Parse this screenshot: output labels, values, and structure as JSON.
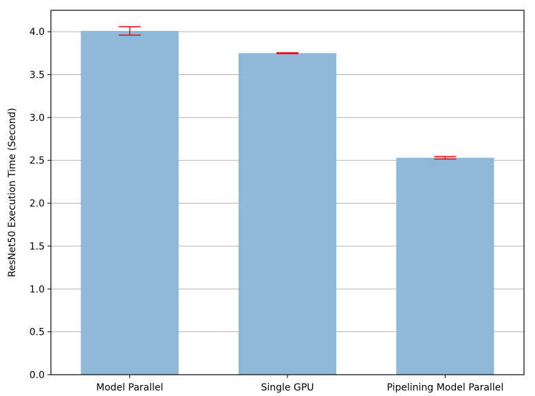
{
  "chart_data": {
    "type": "bar",
    "categories": [
      "Model Parallel",
      "Single GPU",
      "Pipelining Model Parallel"
    ],
    "values": [
      4.01,
      3.75,
      2.53
    ],
    "error": [
      0.05,
      0.005,
      0.015
    ],
    "ylabel": "ResNet50 Execution Time (Second)",
    "xlabel": "",
    "ylim": [
      0,
      4.25
    ],
    "yticks": [
      "0.0",
      "0.5",
      "1.0",
      "1.5",
      "2.0",
      "2.5",
      "3.0",
      "3.5",
      "4.0"
    ],
    "grid": "horizontal",
    "bar_color": "#8db8d9",
    "error_color": "#ff0000",
    "grid_color": "#b0b0b0"
  }
}
